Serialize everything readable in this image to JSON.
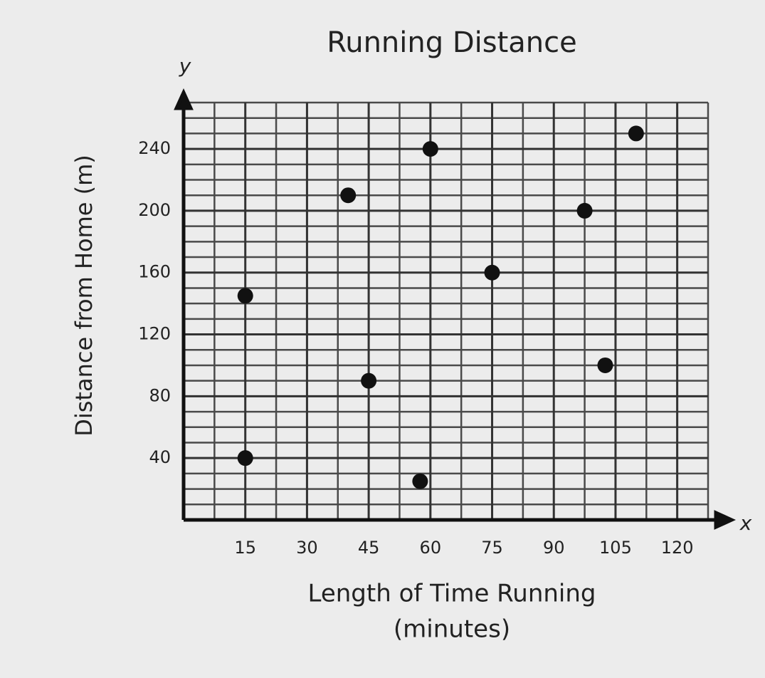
{
  "chart_data": {
    "type": "scatter",
    "title": "Running Distance",
    "xlabel": [
      "Length of Time Running",
      "(minutes)"
    ],
    "ylabel": "Distance from Home (m)",
    "x_axis_letter": "x",
    "y_axis_letter": "y",
    "x": [
      15,
      15,
      40,
      45,
      57.5,
      60,
      75,
      97.5,
      102.5,
      110
    ],
    "values": [
      40,
      145,
      210,
      90,
      25,
      240,
      160,
      200,
      100,
      250
    ],
    "color": "#111111",
    "xlim": [
      0,
      127.5
    ],
    "xticks": [
      15,
      30,
      45,
      60,
      75,
      90,
      105,
      120
    ],
    "ylim": [
      0,
      270
    ],
    "yticks": [
      40,
      80,
      120,
      160,
      200,
      240
    ],
    "grid": true,
    "minor_grid": {
      "x": 7.5,
      "y": 10
    }
  }
}
